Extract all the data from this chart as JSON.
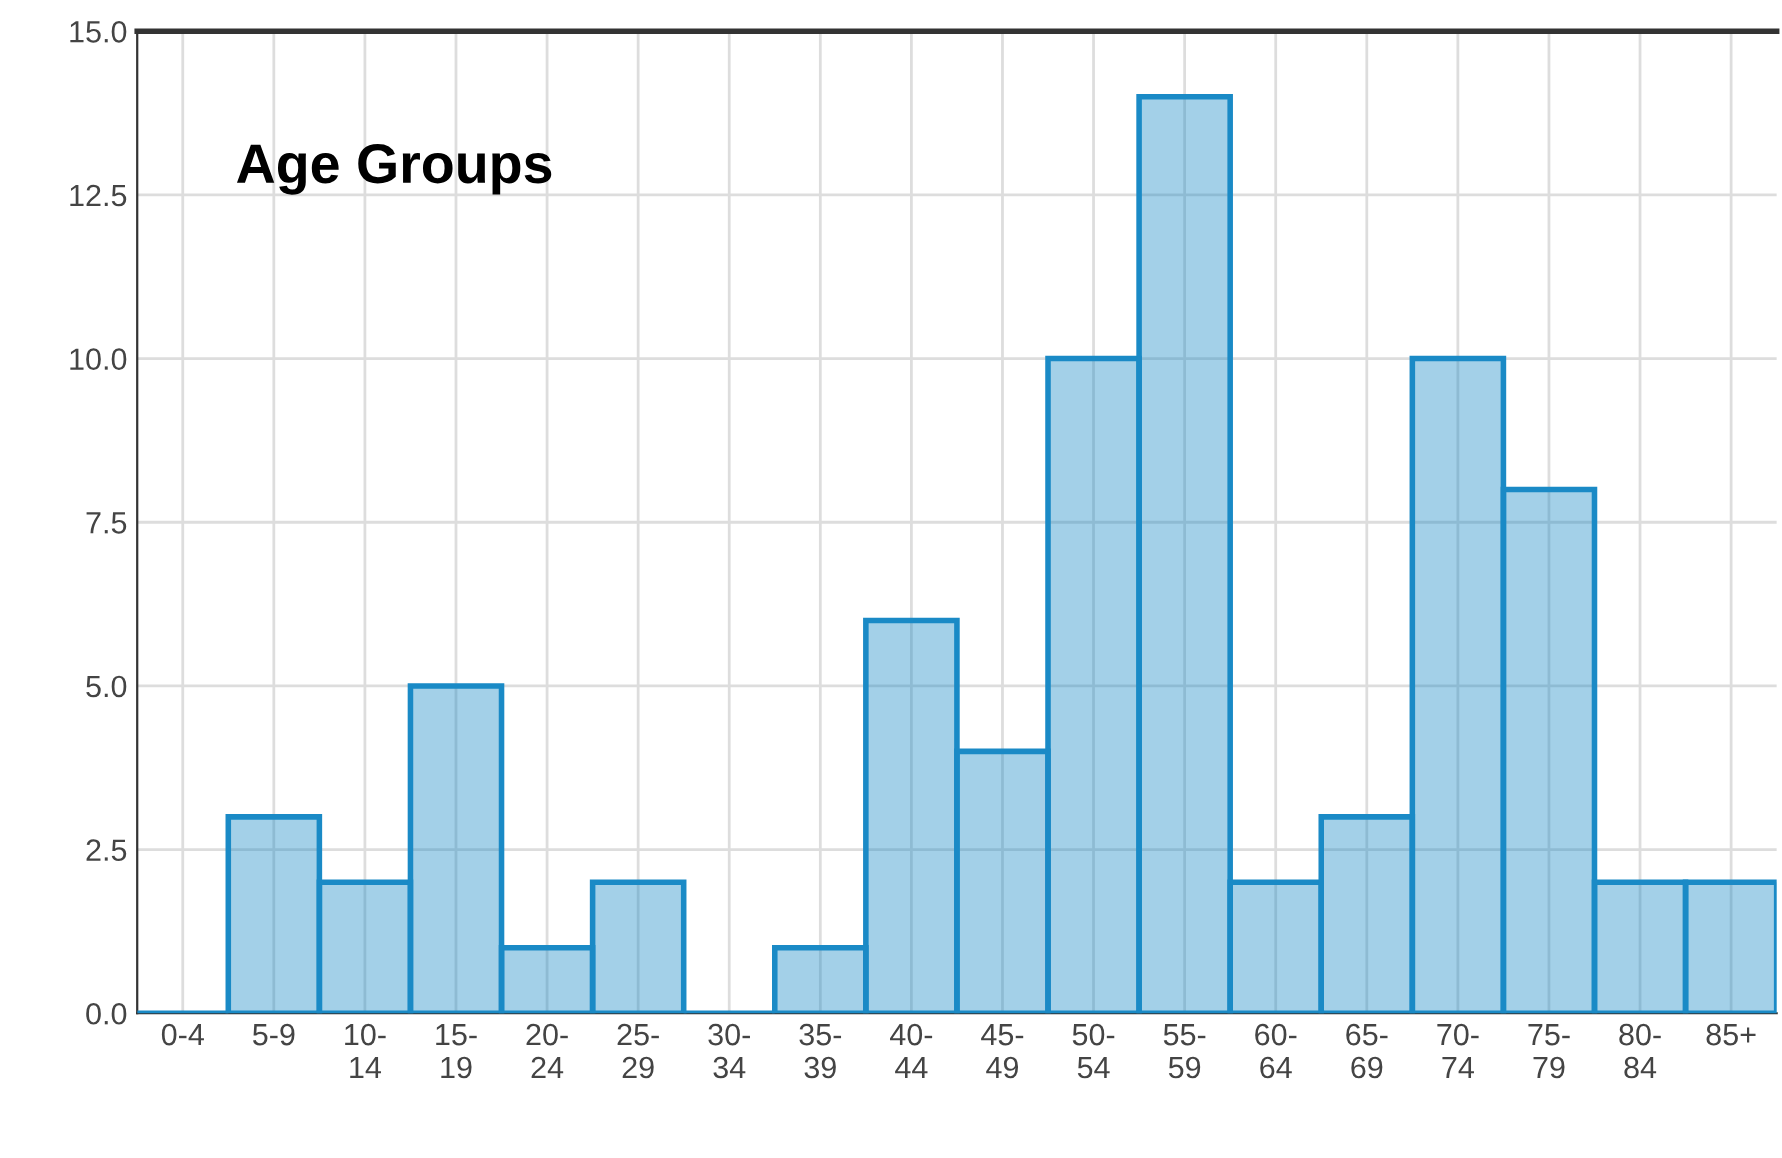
{
  "chart_data": {
    "type": "bar",
    "title": "Age Groups",
    "categories": [
      "0-4",
      "5-9",
      "10-\n14",
      "15-\n19",
      "20-\n24",
      "25-\n29",
      "30-\n34",
      "35-\n39",
      "40-\n44",
      "45-\n49",
      "50-\n54",
      "55-\n59",
      "60-\n64",
      "65-\n69",
      "70-\n74",
      "75-\n79",
      "80-\n84",
      "85+"
    ],
    "values": [
      0,
      3,
      2,
      5,
      1,
      2,
      0,
      1,
      6,
      4,
      10,
      14,
      2,
      3,
      10,
      8,
      2,
      2
    ],
    "color": "#1a8ac6",
    "ylim": [
      0,
      15
    ],
    "yticks": [
      {
        "value": 0,
        "label": "0.0"
      },
      {
        "value": 2.5,
        "label": "2.5"
      },
      {
        "value": 5,
        "label": "5.0"
      },
      {
        "value": 7.5,
        "label": "7.5"
      },
      {
        "value": 10,
        "label": "10.0"
      },
      {
        "value": 12.5,
        "label": "12.5"
      },
      {
        "value": 15,
        "label": "15.0"
      }
    ],
    "grid": true
  }
}
